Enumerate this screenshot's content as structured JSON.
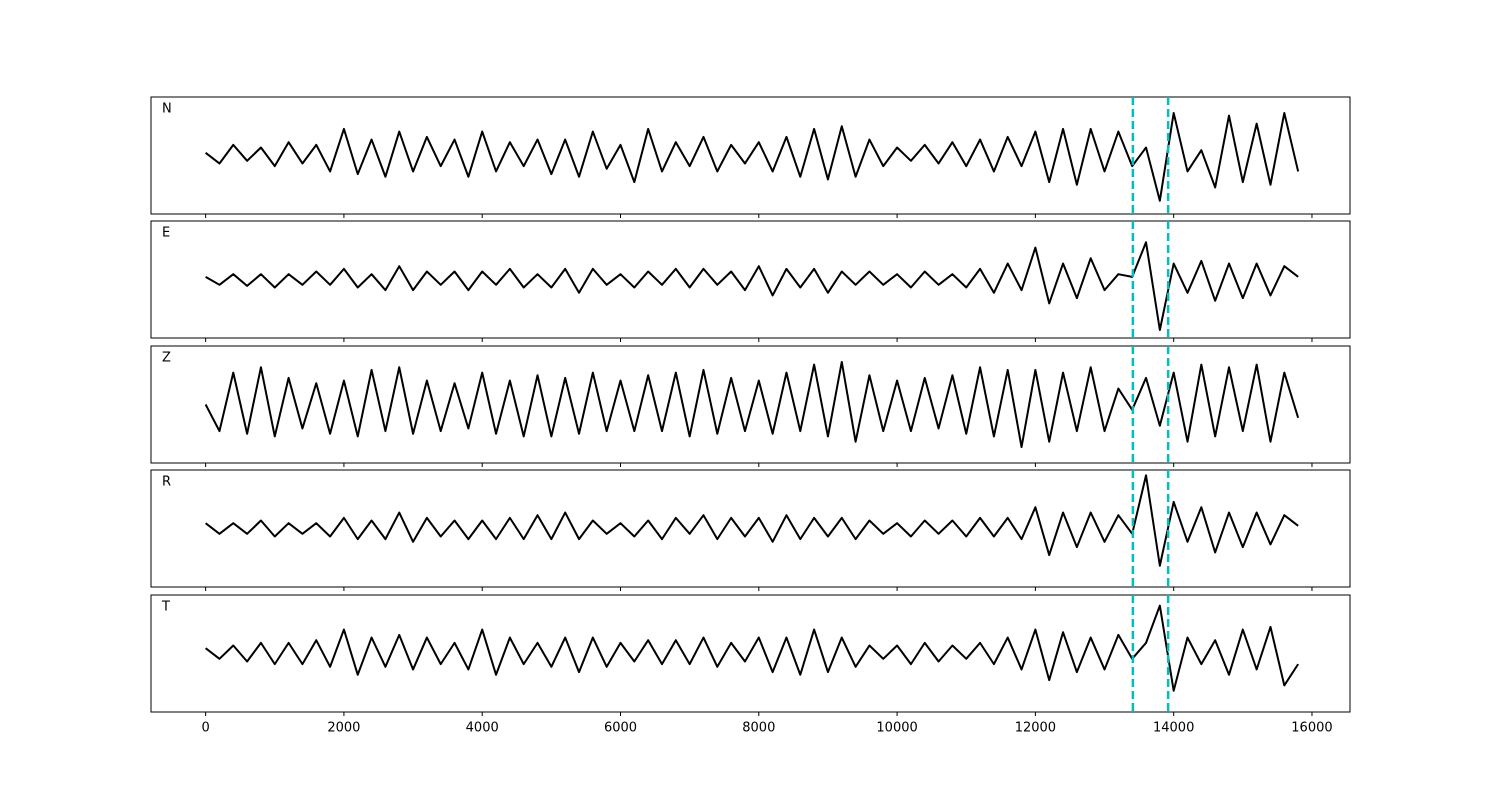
{
  "chart_data": {
    "type": "line",
    "x": [
      0,
      200,
      400,
      600,
      800,
      1000,
      1200,
      1400,
      1600,
      1800,
      2000,
      2200,
      2400,
      2600,
      2800,
      3000,
      3200,
      3400,
      3600,
      3800,
      4000,
      4200,
      4400,
      4600,
      4800,
      5000,
      5200,
      5400,
      5600,
      5800,
      6000,
      6200,
      6400,
      6600,
      6800,
      7000,
      7200,
      7400,
      7600,
      7800,
      8000,
      8200,
      8400,
      8600,
      8800,
      9000,
      9200,
      9400,
      9600,
      9800,
      10000,
      10200,
      10400,
      10600,
      10800,
      11000,
      11200,
      11400,
      11600,
      11800,
      12000,
      12200,
      12400,
      12600,
      12800,
      13000,
      13200,
      13400,
      13600,
      13800,
      14000,
      14200,
      14400,
      14600,
      14800,
      15000,
      15200,
      15400,
      15600,
      15800
    ],
    "xlim": [
      -790,
      16550
    ],
    "xticks": [
      0,
      2000,
      4000,
      6000,
      8000,
      10000,
      12000,
      14000,
      16000
    ],
    "ylim": [
      -1.1,
      1.1
    ],
    "vlines": {
      "x": [
        13410,
        13920
      ],
      "color": "#00bfbf"
    },
    "series": [
      {
        "name": "N",
        "color": "#000000",
        "values": [
          0.05,
          -0.15,
          0.2,
          -0.1,
          0.15,
          -0.2,
          0.25,
          -0.15,
          0.2,
          -0.3,
          0.5,
          -0.35,
          0.3,
          -0.4,
          0.45,
          -0.3,
          0.35,
          -0.2,
          0.3,
          -0.4,
          0.45,
          -0.3,
          0.25,
          -0.2,
          0.3,
          -0.35,
          0.3,
          -0.4,
          0.45,
          -0.25,
          0.2,
          -0.5,
          0.5,
          -0.3,
          0.25,
          -0.2,
          0.35,
          -0.3,
          0.2,
          -0.15,
          0.25,
          -0.3,
          0.35,
          -0.4,
          0.5,
          -0.45,
          0.55,
          -0.4,
          0.3,
          -0.2,
          0.15,
          -0.1,
          0.2,
          -0.15,
          0.25,
          -0.2,
          0.3,
          -0.3,
          0.35,
          -0.2,
          0.45,
          -0.5,
          0.5,
          -0.55,
          0.5,
          -0.3,
          0.45,
          -0.2,
          0.15,
          -0.85,
          0.8,
          -0.3,
          0.1,
          -0.6,
          0.75,
          -0.5,
          0.6,
          -0.55,
          0.8,
          -0.3
        ]
      },
      {
        "name": "E",
        "color": "#000000",
        "values": [
          0.05,
          -0.1,
          0.1,
          -0.12,
          0.1,
          -0.15,
          0.1,
          -0.1,
          0.15,
          -0.1,
          0.2,
          -0.15,
          0.1,
          -0.2,
          0.25,
          -0.2,
          0.15,
          -0.1,
          0.15,
          -0.2,
          0.15,
          -0.1,
          0.2,
          -0.15,
          0.1,
          -0.15,
          0.2,
          -0.25,
          0.2,
          -0.1,
          0.1,
          -0.15,
          0.15,
          -0.1,
          0.2,
          -0.15,
          0.2,
          -0.1,
          0.15,
          -0.2,
          0.25,
          -0.3,
          0.2,
          -0.15,
          0.2,
          -0.25,
          0.15,
          -0.1,
          0.15,
          -0.1,
          0.1,
          -0.15,
          0.15,
          -0.1,
          0.1,
          -0.15,
          0.2,
          -0.25,
          0.3,
          -0.2,
          0.6,
          -0.45,
          0.3,
          -0.35,
          0.4,
          -0.2,
          0.1,
          0.05,
          0.7,
          -0.95,
          0.3,
          -0.25,
          0.35,
          -0.4,
          0.3,
          -0.35,
          0.3,
          -0.3,
          0.25,
          0.05
        ]
      },
      {
        "name": "Z",
        "color": "#000000",
        "values": [
          0,
          -0.5,
          0.6,
          -0.55,
          0.7,
          -0.6,
          0.5,
          -0.45,
          0.4,
          -0.55,
          0.45,
          -0.6,
          0.65,
          -0.5,
          0.7,
          -0.55,
          0.45,
          -0.5,
          0.4,
          -0.45,
          0.6,
          -0.55,
          0.45,
          -0.6,
          0.55,
          -0.6,
          0.5,
          -0.55,
          0.6,
          -0.5,
          0.45,
          -0.5,
          0.55,
          -0.5,
          0.6,
          -0.6,
          0.65,
          -0.55,
          0.5,
          -0.5,
          0.45,
          -0.55,
          0.6,
          -0.5,
          0.75,
          -0.6,
          0.8,
          -0.7,
          0.55,
          -0.5,
          0.45,
          -0.5,
          0.5,
          -0.45,
          0.55,
          -0.55,
          0.7,
          -0.6,
          0.65,
          -0.8,
          0.65,
          -0.7,
          0.6,
          -0.5,
          0.7,
          -0.5,
          0.3,
          -0.1,
          0.5,
          -0.4,
          0.6,
          -0.7,
          0.75,
          -0.6,
          0.7,
          -0.5,
          0.75,
          -0.7,
          0.6,
          -0.25
        ]
      },
      {
        "name": "R",
        "color": "#000000",
        "values": [
          0.1,
          -0.1,
          0.1,
          -0.1,
          0.15,
          -0.15,
          0.1,
          -0.1,
          0.1,
          -0.15,
          0.2,
          -0.2,
          0.15,
          -0.2,
          0.3,
          -0.25,
          0.2,
          -0.15,
          0.15,
          -0.2,
          0.15,
          -0.2,
          0.2,
          -0.2,
          0.25,
          -0.2,
          0.3,
          -0.2,
          0.15,
          -0.1,
          0.1,
          -0.15,
          0.15,
          -0.2,
          0.2,
          -0.1,
          0.25,
          -0.2,
          0.2,
          -0.15,
          0.2,
          -0.25,
          0.25,
          -0.2,
          0.2,
          -0.15,
          0.2,
          -0.2,
          0.15,
          -0.1,
          0.1,
          -0.15,
          0.15,
          -0.1,
          0.15,
          -0.15,
          0.2,
          -0.15,
          0.2,
          -0.2,
          0.4,
          -0.5,
          0.3,
          -0.35,
          0.3,
          -0.25,
          0.25,
          -0.1,
          1.0,
          -0.7,
          0.5,
          -0.25,
          0.4,
          -0.45,
          0.3,
          -0.35,
          0.3,
          -0.3,
          0.25,
          0.05
        ]
      },
      {
        "name": "T",
        "color": "#000000",
        "values": [
          0.1,
          -0.1,
          0.15,
          -0.15,
          0.2,
          -0.2,
          0.2,
          -0.2,
          0.25,
          -0.25,
          0.45,
          -0.4,
          0.3,
          -0.25,
          0.35,
          -0.3,
          0.3,
          -0.2,
          0.2,
          -0.3,
          0.45,
          -0.4,
          0.3,
          -0.2,
          0.2,
          -0.25,
          0.3,
          -0.35,
          0.3,
          -0.25,
          0.2,
          -0.15,
          0.25,
          -0.2,
          0.25,
          -0.2,
          0.3,
          -0.25,
          0.2,
          -0.15,
          0.3,
          -0.35,
          0.3,
          -0.4,
          0.45,
          -0.35,
          0.3,
          -0.25,
          0.15,
          -0.1,
          0.15,
          -0.2,
          0.2,
          -0.15,
          0.15,
          -0.1,
          0.2,
          -0.2,
          0.3,
          -0.3,
          0.45,
          -0.5,
          0.4,
          -0.35,
          0.3,
          -0.3,
          0.35,
          -0.1,
          0.2,
          0.9,
          -0.7,
          0.3,
          -0.2,
          0.25,
          -0.4,
          0.45,
          -0.3,
          0.5,
          -0.6,
          -0.2
        ]
      }
    ]
  }
}
